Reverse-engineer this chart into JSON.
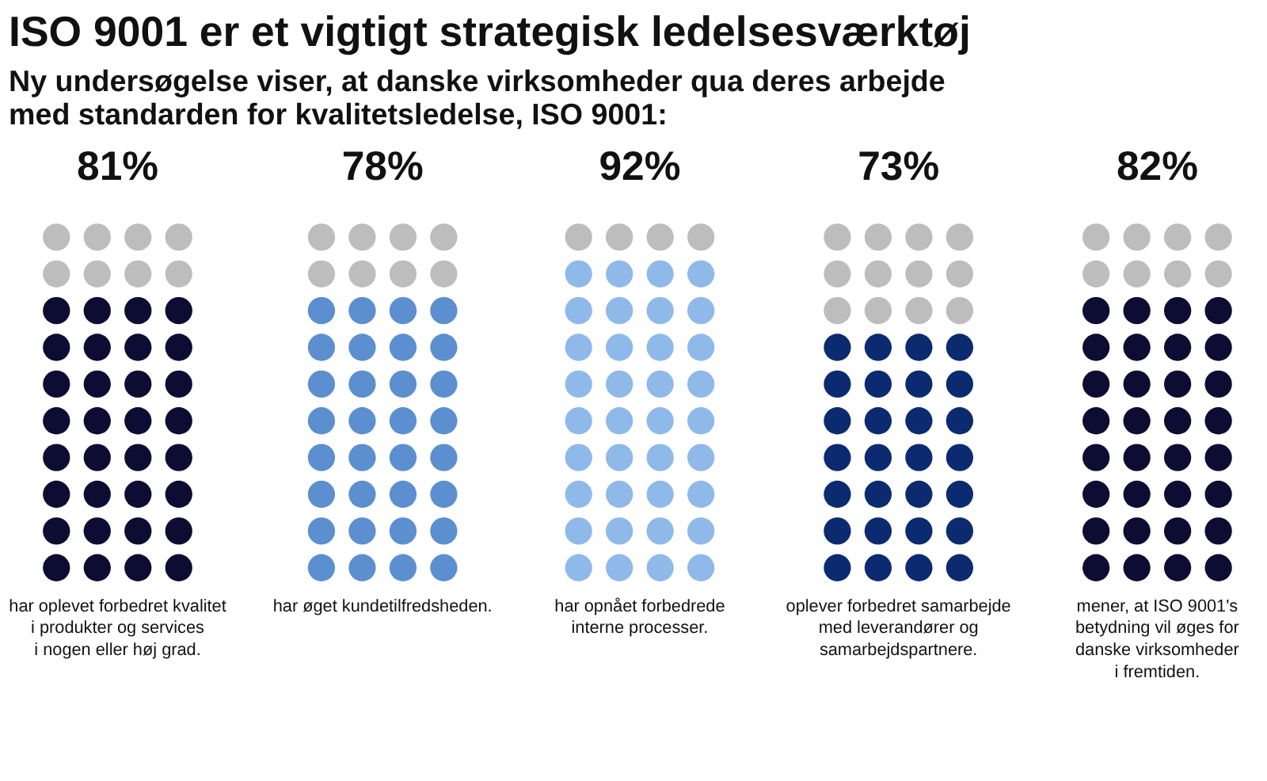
{
  "chart_data": {
    "type": "other",
    "title": "ISO 9001 er et vigtigt strategisk ledelsesværktøj",
    "subtitle": "Ny undersøgelse viser, at danske virksomheder qua deres arbejde\nmed standarden for kvalitetsledelse, ISO 9001:",
    "categories": [
      "har oplevet forbedret kvalitet\ni produkter og services\ni nogen eller høj grad.",
      "har øget kundetilfredsheden.",
      "har opnået forbedrede\ninterne processer.",
      "oplever forbedret samarbejde\nmed leverandører og\nsamarbejdspartnere.",
      "mener, at ISO 9001's\nbetydning vil øges for\ndanske virksomheder\ni fremtiden."
    ],
    "values": [
      81,
      78,
      92,
      73,
      82
    ],
    "value_labels": [
      "81%",
      "78%",
      "92%",
      "73%",
      "82%"
    ],
    "colors": [
      "#0d0d33",
      "#5b8fd0",
      "#8fb9e8",
      "#0b2a70",
      "#0d0d33"
    ]
  }
}
